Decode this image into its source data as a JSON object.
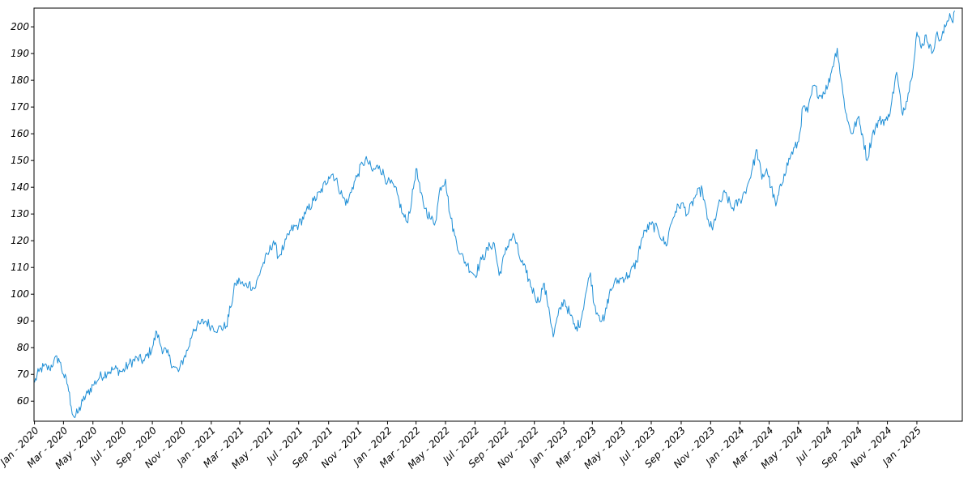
{
  "chart_data": {
    "type": "line",
    "title": "",
    "xlabel": "",
    "ylabel": "",
    "grid": false,
    "ylim": [
      52.5,
      207
    ],
    "xlim": [
      "2019-12-31",
      "2025-04-05"
    ],
    "x_ticks": [
      {
        "date": "2020-01-01",
        "label": "Jan - 2020"
      },
      {
        "date": "2020-03-01",
        "label": "Mar - 2020"
      },
      {
        "date": "2020-05-01",
        "label": "May - 2020"
      },
      {
        "date": "2020-07-01",
        "label": "Jul - 2020"
      },
      {
        "date": "2020-09-01",
        "label": "Sep - 2020"
      },
      {
        "date": "2020-11-01",
        "label": "Nov - 2020"
      },
      {
        "date": "2021-01-01",
        "label": "Jan - 2021"
      },
      {
        "date": "2021-03-01",
        "label": "Mar - 2021"
      },
      {
        "date": "2021-05-01",
        "label": "May - 2021"
      },
      {
        "date": "2021-07-01",
        "label": "Jul - 2021"
      },
      {
        "date": "2021-09-01",
        "label": "Sep - 2021"
      },
      {
        "date": "2021-11-01",
        "label": "Nov - 2021"
      },
      {
        "date": "2022-01-01",
        "label": "Jan - 2022"
      },
      {
        "date": "2022-03-01",
        "label": "Mar - 2022"
      },
      {
        "date": "2022-05-01",
        "label": "May - 2022"
      },
      {
        "date": "2022-07-01",
        "label": "Jul - 2022"
      },
      {
        "date": "2022-09-01",
        "label": "Sep - 2022"
      },
      {
        "date": "2022-11-01",
        "label": "Nov - 2022"
      },
      {
        "date": "2023-01-01",
        "label": "Jan - 2023"
      },
      {
        "date": "2023-03-01",
        "label": "Mar - 2023"
      },
      {
        "date": "2023-05-01",
        "label": "May - 2023"
      },
      {
        "date": "2023-07-01",
        "label": "Jul - 2023"
      },
      {
        "date": "2023-09-01",
        "label": "Sep - 2023"
      },
      {
        "date": "2023-11-01",
        "label": "Nov - 2023"
      },
      {
        "date": "2024-01-01",
        "label": "Jan - 2024"
      },
      {
        "date": "2024-03-01",
        "label": "Mar - 2024"
      },
      {
        "date": "2024-05-01",
        "label": "May - 2024"
      },
      {
        "date": "2024-07-01",
        "label": "Jul - 2024"
      },
      {
        "date": "2024-09-01",
        "label": "Sep - 2024"
      },
      {
        "date": "2024-11-01",
        "label": "Nov - 2024"
      },
      {
        "date": "2025-01-01",
        "label": "Jan - 2025"
      }
    ],
    "y_ticks": [
      60,
      70,
      80,
      90,
      100,
      110,
      120,
      130,
      140,
      150,
      160,
      170,
      180,
      190,
      200
    ],
    "series": [
      {
        "color": "#1f8fd6",
        "points": [
          [
            "2020-01-01",
            67
          ],
          [
            "2020-01-10",
            71
          ],
          [
            "2020-01-20",
            73
          ],
          [
            "2020-02-01",
            72
          ],
          [
            "2020-02-10",
            75
          ],
          [
            "2020-02-20",
            76
          ],
          [
            "2020-03-01",
            70
          ],
          [
            "2020-03-10",
            66
          ],
          [
            "2020-03-17",
            58
          ],
          [
            "2020-03-23",
            54
          ],
          [
            "2020-04-01",
            56
          ],
          [
            "2020-04-10",
            60
          ],
          [
            "2020-04-20",
            63
          ],
          [
            "2020-05-01",
            66
          ],
          [
            "2020-05-15",
            69
          ],
          [
            "2020-06-01",
            71
          ],
          [
            "2020-06-15",
            72
          ],
          [
            "2020-07-01",
            71
          ],
          [
            "2020-07-15",
            74
          ],
          [
            "2020-08-01",
            76
          ],
          [
            "2020-08-15",
            75
          ],
          [
            "2020-09-01",
            80
          ],
          [
            "2020-09-10",
            86
          ],
          [
            "2020-09-20",
            80
          ],
          [
            "2020-10-01",
            78
          ],
          [
            "2020-10-15",
            73
          ],
          [
            "2020-10-25",
            71
          ],
          [
            "2020-11-05",
            76
          ],
          [
            "2020-11-15",
            80
          ],
          [
            "2020-11-25",
            87
          ],
          [
            "2020-12-10",
            89
          ],
          [
            "2020-12-20",
            90
          ],
          [
            "2021-01-01",
            88
          ],
          [
            "2021-01-15",
            87
          ],
          [
            "2021-02-01",
            88
          ],
          [
            "2021-02-10",
            95
          ],
          [
            "2021-02-20",
            104
          ],
          [
            "2021-03-01",
            105
          ],
          [
            "2021-03-10",
            103
          ],
          [
            "2021-03-20",
            104
          ],
          [
            "2021-04-01",
            102
          ],
          [
            "2021-04-15",
            110
          ],
          [
            "2021-05-01",
            116
          ],
          [
            "2021-05-10",
            120
          ],
          [
            "2021-05-20",
            114
          ],
          [
            "2021-06-01",
            118
          ],
          [
            "2021-06-15",
            124
          ],
          [
            "2021-07-01",
            126
          ],
          [
            "2021-07-15",
            130
          ],
          [
            "2021-08-01",
            135
          ],
          [
            "2021-08-15",
            138
          ],
          [
            "2021-09-01",
            144
          ],
          [
            "2021-09-10",
            145
          ],
          [
            "2021-09-20",
            141
          ],
          [
            "2021-10-01",
            136
          ],
          [
            "2021-10-10",
            134
          ],
          [
            "2021-10-20",
            140
          ],
          [
            "2021-11-01",
            145
          ],
          [
            "2021-11-10",
            149
          ],
          [
            "2021-11-20",
            150
          ],
          [
            "2021-12-01",
            146
          ],
          [
            "2021-12-15",
            148
          ],
          [
            "2022-01-01",
            142
          ],
          [
            "2022-01-15",
            140
          ],
          [
            "2022-01-25",
            135
          ],
          [
            "2022-02-01",
            130
          ],
          [
            "2022-02-10",
            127
          ],
          [
            "2022-02-20",
            135
          ],
          [
            "2022-03-01",
            147
          ],
          [
            "2022-03-10",
            138
          ],
          [
            "2022-03-20",
            132
          ],
          [
            "2022-04-01",
            128
          ],
          [
            "2022-04-10",
            127
          ],
          [
            "2022-04-20",
            140
          ],
          [
            "2022-05-01",
            143
          ],
          [
            "2022-05-10",
            130
          ],
          [
            "2022-05-20",
            122
          ],
          [
            "2022-06-01",
            115
          ],
          [
            "2022-06-15",
            111
          ],
          [
            "2022-07-01",
            107
          ],
          [
            "2022-07-15",
            113
          ],
          [
            "2022-08-01",
            118
          ],
          [
            "2022-08-10",
            119
          ],
          [
            "2022-08-20",
            107
          ],
          [
            "2022-09-01",
            115
          ],
          [
            "2022-09-10",
            120
          ],
          [
            "2022-09-20",
            122
          ],
          [
            "2022-10-01",
            114
          ],
          [
            "2022-10-15",
            108
          ],
          [
            "2022-11-01",
            100
          ],
          [
            "2022-11-10",
            97
          ],
          [
            "2022-11-20",
            104
          ],
          [
            "2022-12-01",
            95
          ],
          [
            "2022-12-10",
            84
          ],
          [
            "2022-12-20",
            92
          ],
          [
            "2023-01-01",
            98
          ],
          [
            "2023-01-15",
            92
          ],
          [
            "2023-01-25",
            87
          ],
          [
            "2023-02-05",
            90
          ],
          [
            "2023-02-15",
            100
          ],
          [
            "2023-02-25",
            108
          ],
          [
            "2023-03-05",
            96
          ],
          [
            "2023-03-15",
            92
          ],
          [
            "2023-03-25",
            90
          ],
          [
            "2023-04-05",
            100
          ],
          [
            "2023-04-15",
            104
          ],
          [
            "2023-05-01",
            106
          ],
          [
            "2023-05-15",
            107
          ],
          [
            "2023-06-01",
            112
          ],
          [
            "2023-06-10",
            120
          ],
          [
            "2023-06-20",
            124
          ],
          [
            "2023-07-01",
            126
          ],
          [
            "2023-07-15",
            124
          ],
          [
            "2023-08-01",
            118
          ],
          [
            "2023-08-10",
            126
          ],
          [
            "2023-08-20",
            131
          ],
          [
            "2023-09-01",
            134
          ],
          [
            "2023-09-15",
            130
          ],
          [
            "2023-10-01",
            137
          ],
          [
            "2023-10-15",
            139
          ],
          [
            "2023-10-25",
            128
          ],
          [
            "2023-11-05",
            124
          ],
          [
            "2023-11-15",
            132
          ],
          [
            "2023-12-01",
            138
          ],
          [
            "2023-12-15",
            132
          ],
          [
            "2024-01-01",
            135
          ],
          [
            "2024-01-15",
            140
          ],
          [
            "2024-01-25",
            146
          ],
          [
            "2024-02-05",
            154
          ],
          [
            "2024-02-15",
            143
          ],
          [
            "2024-02-25",
            147
          ],
          [
            "2024-03-05",
            140
          ],
          [
            "2024-03-15",
            133
          ],
          [
            "2024-04-01",
            145
          ],
          [
            "2024-04-15",
            152
          ],
          [
            "2024-05-01",
            157
          ],
          [
            "2024-05-10",
            170
          ],
          [
            "2024-05-20",
            168
          ],
          [
            "2024-06-01",
            178
          ],
          [
            "2024-06-15",
            174
          ],
          [
            "2024-07-01",
            178
          ],
          [
            "2024-07-10",
            185
          ],
          [
            "2024-07-20",
            192
          ],
          [
            "2024-08-01",
            175
          ],
          [
            "2024-08-10",
            165
          ],
          [
            "2024-08-20",
            160
          ],
          [
            "2024-09-01",
            166
          ],
          [
            "2024-09-10",
            160
          ],
          [
            "2024-09-20",
            150
          ],
          [
            "2024-10-01",
            160
          ],
          [
            "2024-10-15",
            165
          ],
          [
            "2024-11-01",
            165
          ],
          [
            "2024-11-10",
            172
          ],
          [
            "2024-11-20",
            183
          ],
          [
            "2024-12-01",
            168
          ],
          [
            "2024-12-10",
            172
          ],
          [
            "2024-12-20",
            180
          ],
          [
            "2025-01-01",
            198
          ],
          [
            "2025-01-10",
            192
          ],
          [
            "2025-01-20",
            197
          ],
          [
            "2025-02-01",
            190
          ],
          [
            "2025-02-10",
            197
          ],
          [
            "2025-02-20",
            195
          ],
          [
            "2025-03-01",
            200
          ],
          [
            "2025-03-10",
            205
          ],
          [
            "2025-03-15",
            202
          ],
          [
            "2025-03-20",
            206
          ]
        ]
      }
    ]
  }
}
